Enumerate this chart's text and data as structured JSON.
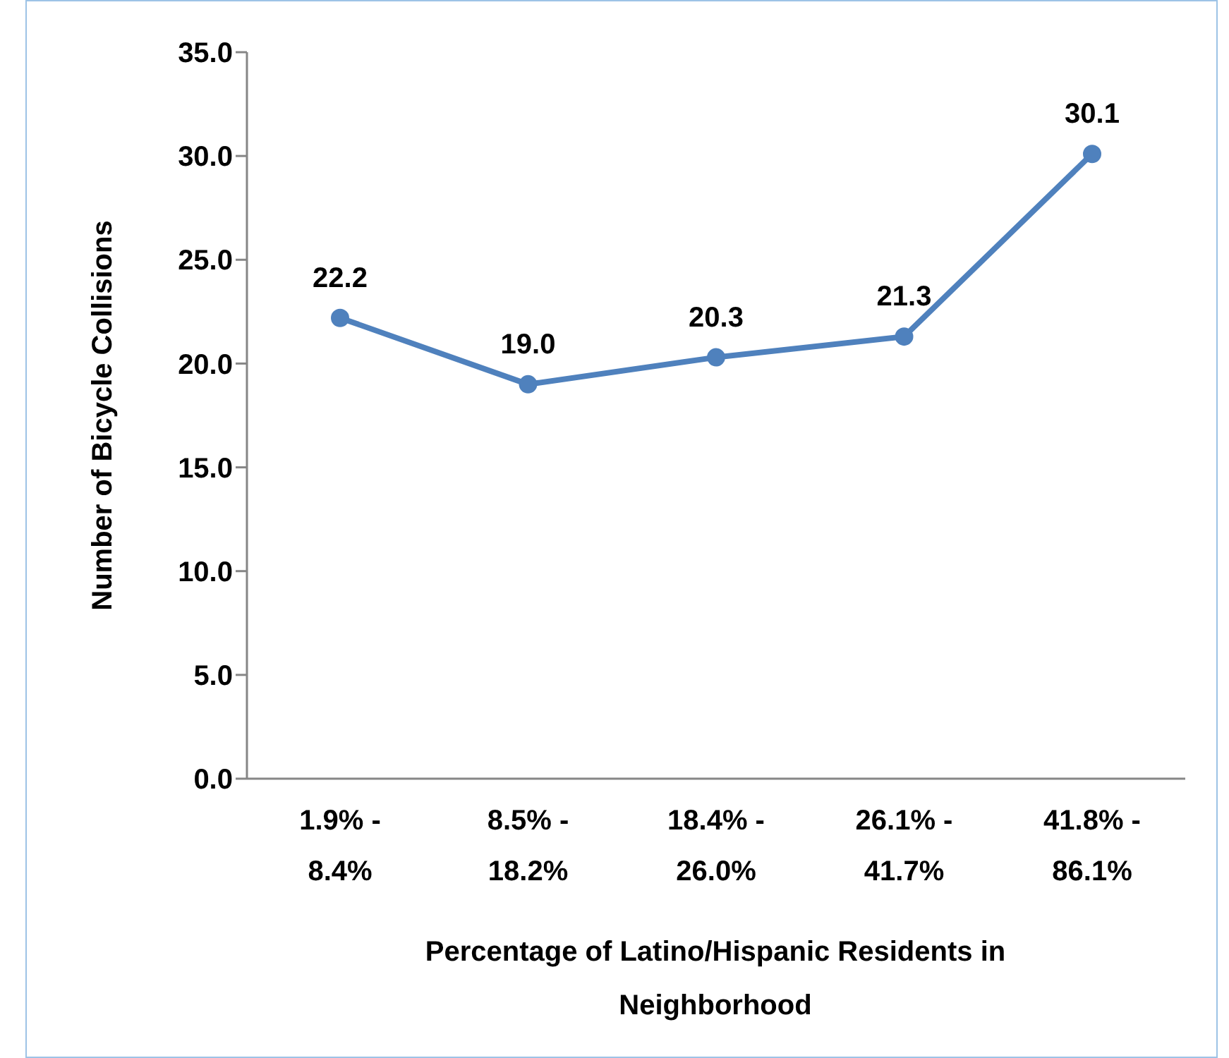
{
  "chart_data": {
    "type": "line",
    "xlabel": "Percentage of Latino/Hispanic Residents in Neighborhood",
    "ylabel": "Number of  Bicycle Collisions",
    "categories": [
      "1.9% - 8.4%",
      "8.5% - 18.2%",
      "18.4% - 26.0%",
      "26.1% - 41.7%",
      "41.8% - 86.1%"
    ],
    "series": [
      {
        "color": "#4f81bd",
        "values": [
          22.2,
          19.0,
          20.3,
          21.3,
          30.1
        ],
        "value_labels": [
          "22.2",
          "19.0",
          "20.3",
          "21.3",
          "30.1"
        ]
      }
    ],
    "ylim": [
      0,
      35
    ],
    "yticks": [
      {
        "value": 0,
        "label": "0.0"
      },
      {
        "value": 5,
        "label": "5.0"
      },
      {
        "value": 10,
        "label": "10.0"
      },
      {
        "value": 15,
        "label": "15.0"
      },
      {
        "value": 20,
        "label": "20.0"
      },
      {
        "value": 25,
        "label": "25.0"
      },
      {
        "value": 30,
        "label": "30.0"
      },
      {
        "value": 35,
        "label": "35.0"
      }
    ],
    "marker": "circle",
    "grid": false,
    "legend": false
  }
}
